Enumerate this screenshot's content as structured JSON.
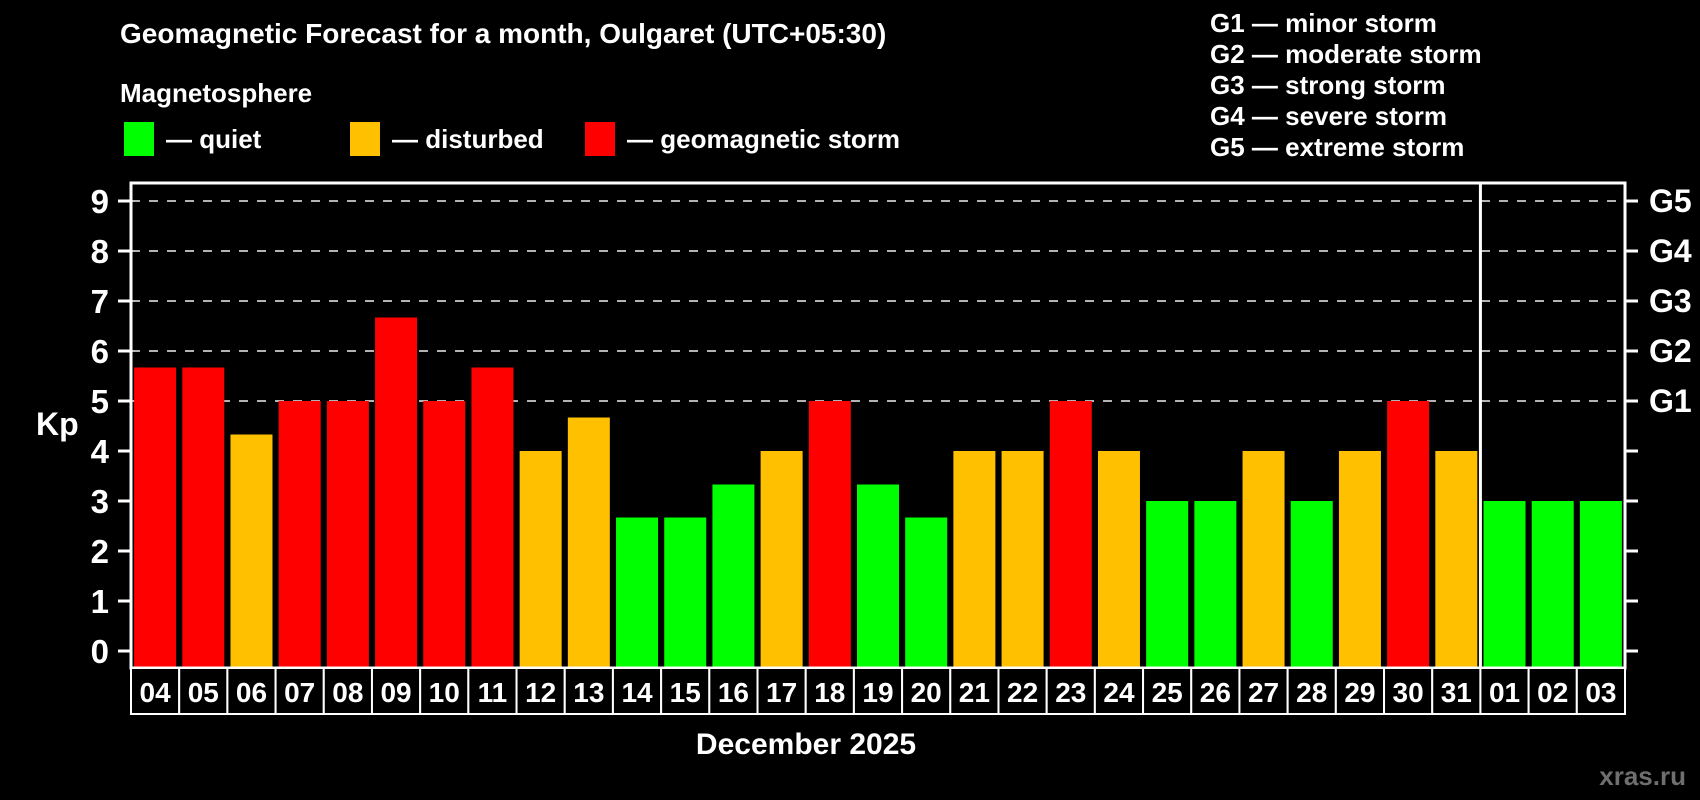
{
  "header": {
    "title": "Geomagnetic Forecast for a month, Oulgaret (UTC+05:30)",
    "subtitle": "Magnetosphere"
  },
  "storm_scale_legend": [
    "G1 — minor storm",
    "G2 — moderate storm",
    "G3 — strong storm",
    "G4 — severe storm",
    "G5 — extreme storm"
  ],
  "color_legend": [
    {
      "key": "quiet",
      "label": "— quiet"
    },
    {
      "key": "disturbed",
      "label": "— disturbed"
    },
    {
      "key": "storm",
      "label": "— geomagnetic storm"
    }
  ],
  "colors": {
    "quiet": "#00ff00",
    "disturbed": "#ffc000",
    "storm": "#ff0000",
    "frame": "#ffffff",
    "grid": "#b3b3b3",
    "watermark": "#6f6f6f"
  },
  "watermark": "xras.ru",
  "chart_data": {
    "type": "bar",
    "title": "Geomagnetic Forecast for a month, Oulgaret (UTC+05:30)",
    "subtitle": "Magnetosphere",
    "xlabel": "December 2025",
    "ylabel": "Kp",
    "ylim": [
      0,
      9
    ],
    "yticks": [
      0,
      1,
      2,
      3,
      4,
      5,
      6,
      7,
      8,
      9
    ],
    "grid_levels": [
      5,
      6,
      7,
      8,
      9
    ],
    "grid_style": "dashed, only at storm levels G1–G5",
    "legend_position": "top",
    "g_levels": [
      {
        "level": 5,
        "label": "G1"
      },
      {
        "level": 6,
        "label": "G2"
      },
      {
        "level": 7,
        "label": "G3"
      },
      {
        "level": 8,
        "label": "G4"
      },
      {
        "level": 9,
        "label": "G5"
      }
    ],
    "categories": [
      "04",
      "05",
      "06",
      "07",
      "08",
      "09",
      "10",
      "11",
      "12",
      "13",
      "14",
      "15",
      "16",
      "17",
      "18",
      "19",
      "20",
      "21",
      "22",
      "23",
      "24",
      "25",
      "26",
      "27",
      "28",
      "29",
      "30",
      "31",
      "01",
      "02",
      "03"
    ],
    "values": [
      5.67,
      5.67,
      4.33,
      5,
      5,
      6.67,
      5,
      5.67,
      4,
      4.67,
      2.67,
      2.67,
      3.33,
      4,
      5,
      3.33,
      2.67,
      4,
      4,
      5,
      4,
      3,
      3,
      4,
      3,
      4,
      5,
      4,
      3,
      3,
      3
    ],
    "levels": [
      "storm",
      "storm",
      "disturbed",
      "storm",
      "storm",
      "storm",
      "storm",
      "storm",
      "disturbed",
      "disturbed",
      "quiet",
      "quiet",
      "quiet",
      "disturbed",
      "storm",
      "quiet",
      "quiet",
      "disturbed",
      "disturbed",
      "storm",
      "disturbed",
      "quiet",
      "quiet",
      "disturbed",
      "quiet",
      "disturbed",
      "storm",
      "disturbed",
      "quiet",
      "quiet",
      "quiet"
    ],
    "month_divider_after_index": 27
  }
}
